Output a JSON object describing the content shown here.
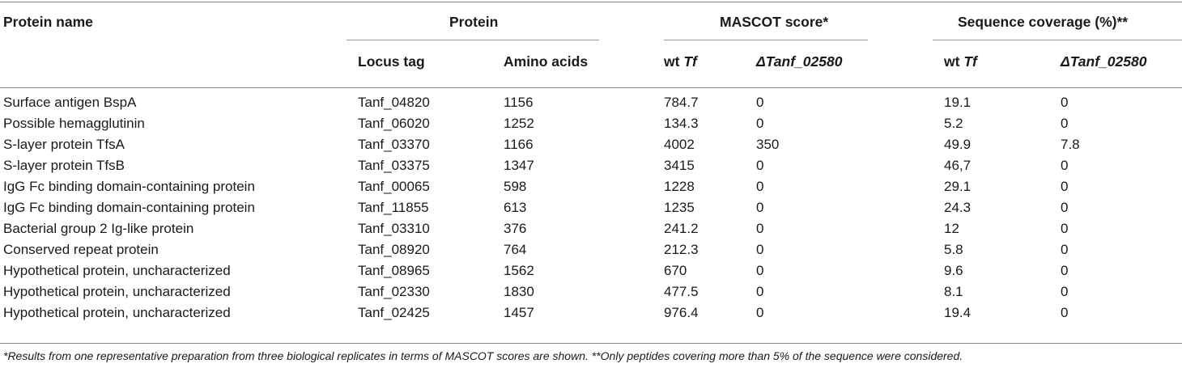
{
  "table": {
    "headers": {
      "protein_name": "Protein name",
      "protein_group": "Protein",
      "mascot_group": "MASCOT score*",
      "coverage_group": "Sequence coverage (%)**",
      "locus_tag": "Locus tag",
      "amino_acids": "Amino acids",
      "wt_prefix": "wt ",
      "wt_italic": "Tf",
      "mutant": "ΔTanf_02580"
    },
    "rows": [
      {
        "name": "Surface antigen BspA",
        "locus": "Tanf_04820",
        "aa": "1156",
        "mascot_wt": "784.7",
        "mascot_mut": "0",
        "cov_wt": "19.1",
        "cov_mut": "0"
      },
      {
        "name": "Possible hemagglutinin",
        "locus": "Tanf_06020",
        "aa": "1252",
        "mascot_wt": "134.3",
        "mascot_mut": "0",
        "cov_wt": "5.2",
        "cov_mut": "0"
      },
      {
        "name": "S-layer protein TfsA",
        "locus": "Tanf_03370",
        "aa": "1166",
        "mascot_wt": "4002",
        "mascot_mut": "350",
        "cov_wt": "49.9",
        "cov_mut": "7.8"
      },
      {
        "name": "S-layer protein TfsB",
        "locus": "Tanf_03375",
        "aa": "1347",
        "mascot_wt": "3415",
        "mascot_mut": "0",
        "cov_wt": "46,7",
        "cov_mut": "0"
      },
      {
        "name": "IgG Fc binding domain-containing protein",
        "locus": "Tanf_00065",
        "aa": "598",
        "mascot_wt": "1228",
        "mascot_mut": "0",
        "cov_wt": "29.1",
        "cov_mut": "0"
      },
      {
        "name": "IgG Fc binding domain-containing protein",
        "locus": "Tanf_11855",
        "aa": "613",
        "mascot_wt": "1235",
        "mascot_mut": "0",
        "cov_wt": "24.3",
        "cov_mut": "0"
      },
      {
        "name": "Bacterial group 2 Ig-like protein",
        "locus": "Tanf_03310",
        "aa": "376",
        "mascot_wt": "241.2",
        "mascot_mut": "0",
        "cov_wt": "12",
        "cov_mut": "0"
      },
      {
        "name": "Conserved repeat protein",
        "locus": "Tanf_08920",
        "aa": "764",
        "mascot_wt": "212.3",
        "mascot_mut": "0",
        "cov_wt": "5.8",
        "cov_mut": "0"
      },
      {
        "name": "Hypothetical protein, uncharacterized",
        "locus": "Tanf_08965",
        "aa": "1562",
        "mascot_wt": "670",
        "mascot_mut": "0",
        "cov_wt": "9.6",
        "cov_mut": "0"
      },
      {
        "name": "Hypothetical protein, uncharacterized",
        "locus": "Tanf_02330",
        "aa": "1830",
        "mascot_wt": "477.5",
        "mascot_mut": "0",
        "cov_wt": "8.1",
        "cov_mut": "0"
      },
      {
        "name": "Hypothetical protein, uncharacterized",
        "locus": "Tanf_02425",
        "aa": "1457",
        "mascot_wt": "976.4",
        "mascot_mut": "0",
        "cov_wt": "19.4",
        "cov_mut": "0"
      }
    ],
    "footnote": "*Results from one representative preparation from three biological replicates in terms of MASCOT scores are shown. **Only peptides covering more than 5% of the sequence were considered."
  }
}
